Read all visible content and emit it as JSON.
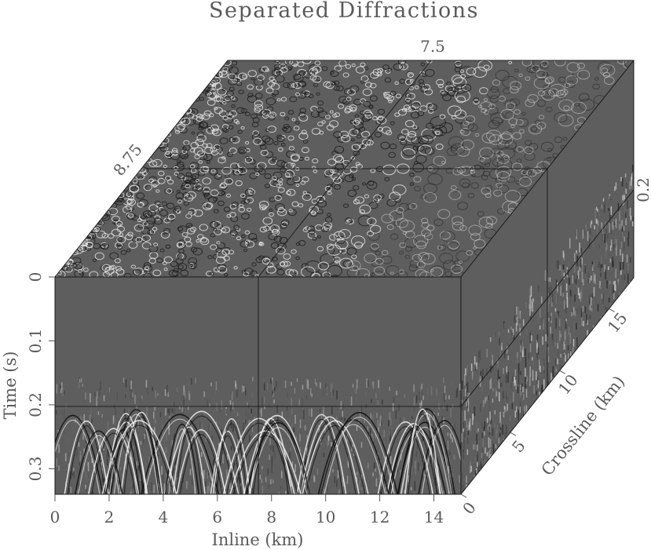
{
  "chart_data": {
    "type": "heatmap",
    "subtype": "3d-seismic-cube",
    "title": "Separated Diffractions",
    "xlabel": "Inline (km)",
    "ylabel": "Time (s)",
    "zlabel": "Crossline (km)",
    "x_ticks": [
      "0",
      "2",
      "4",
      "6",
      "8",
      "10",
      "12",
      "14"
    ],
    "x_tick_values": [
      0,
      2,
      4,
      6,
      8,
      10,
      12,
      14
    ],
    "xlim": [
      0,
      15
    ],
    "y_ticks": [
      "0",
      "0.1",
      "0.2",
      "0.3"
    ],
    "y_tick_values": [
      0,
      0.1,
      0.2,
      0.3
    ],
    "ylim": [
      0,
      0.34
    ],
    "z_ticks": [
      "0",
      "5",
      "10",
      "15"
    ],
    "z_tick_values": [
      0,
      5,
      10,
      15
    ],
    "zlim": [
      0,
      17.5
    ],
    "slice_labels": {
      "inline_slice": "7.5",
      "crossline_slice": "8.75",
      "time_slice": "0.2"
    },
    "slices": {
      "inline_km": 7.5,
      "crossline_km": 8.75,
      "time_s": 0.2
    },
    "colormap": "grayscale",
    "background_gray": "#5e5e5e",
    "diffraction_onset_time_s": 0.15,
    "grid": false,
    "legend": null
  }
}
